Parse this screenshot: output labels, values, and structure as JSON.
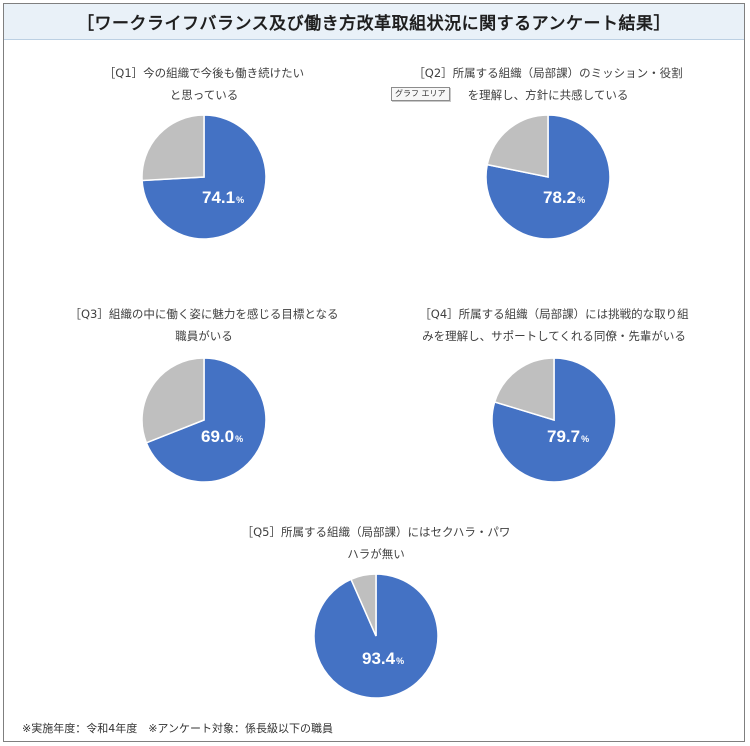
{
  "title": "［ワークライフバランス及び働き方改革取組状況に関するアンケート結果］",
  "graph_area_tooltip": "グラフ エリア",
  "footnote": "※実施年度：令和4年度　※アンケート対象：係長級以下の職員",
  "colors": {
    "positive": "#4472c4",
    "rest": "#bfbfbf",
    "title_bg": "#e9f1f8"
  },
  "chart_data": [
    {
      "type": "pie",
      "title": "［Q1］今の組織で今後も働き続けたい\nと思っている",
      "values": [
        74.1,
        25.9
      ],
      "value_label": "74.1",
      "unit": "%"
    },
    {
      "type": "pie",
      "title": "［Q2］所属する組織（局部課）のミッション・役割\nを理解し、方針に共感している",
      "values": [
        78.2,
        21.8
      ],
      "value_label": "78.2",
      "unit": "%"
    },
    {
      "type": "pie",
      "title": "［Q3］組織の中に働く姿に魅力を感じる目標となる\n職員がいる",
      "values": [
        69.0,
        31.0
      ],
      "value_label": "69.0",
      "unit": "%"
    },
    {
      "type": "pie",
      "title": "［Q4］所属する組織（局部課）には挑戦的な取り組\nみを理解し、サポートしてくれる同僚・先輩がいる",
      "values": [
        79.7,
        20.3
      ],
      "value_label": "79.7",
      "unit": "%"
    },
    {
      "type": "pie",
      "title": "［Q5］所属する組織（局部課）にはセクハラ・パワ\nハラが無い",
      "values": [
        93.4,
        6.6
      ],
      "value_label": "93.4",
      "unit": "%"
    }
  ]
}
